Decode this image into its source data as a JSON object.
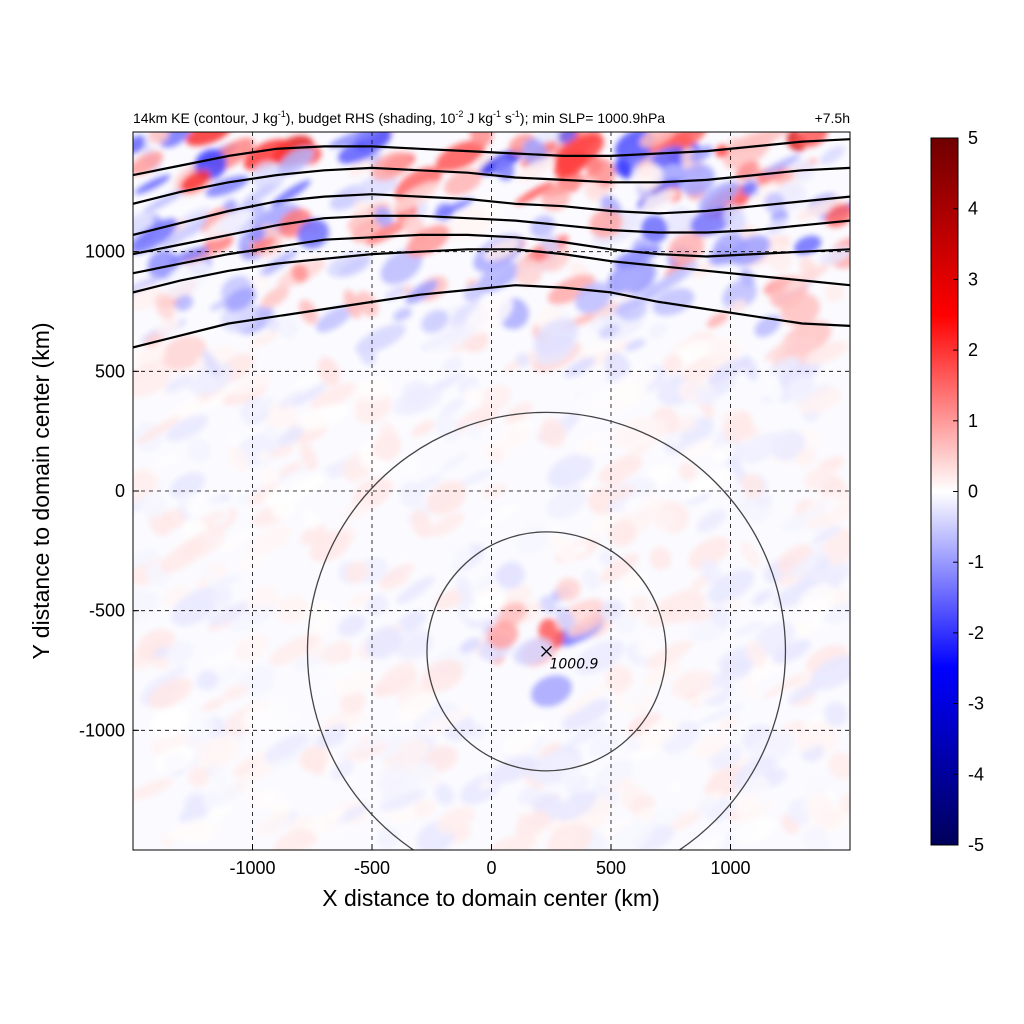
{
  "chart_data": {
    "type": "heatmap",
    "title_main": "14km KE (contour, J kg",
    "title_sup1": "-1",
    "title_mid": "), budget RHS (shading, 10",
    "title_sup2": "-2",
    "title_mid2": " J kg",
    "title_sup3": "-1",
    "title_mid3": " s",
    "title_sup4": "-1",
    "title_end": "); min SLP= 1000.9hPa",
    "time_label": "+7.5h",
    "xlabel": "X distance to domain center (km)",
    "ylabel": "Y distance to domain center (km)",
    "xlim": [
      -1500,
      1500
    ],
    "ylim": [
      -1500,
      1500
    ],
    "xticks": [
      -1000,
      -500,
      0,
      500,
      1000
    ],
    "yticks": [
      -1000,
      -500,
      0,
      500,
      1000
    ],
    "grid": "dashed",
    "colorbar": {
      "min": -5,
      "max": 5,
      "ticks": [
        5,
        4,
        3,
        2,
        1,
        0,
        -1,
        -2,
        -3,
        -4,
        -5
      ],
      "colors": [
        "#00005a",
        "#0000ff",
        "#ffffff",
        "#ff0000",
        "#6e0000"
      ]
    },
    "storm_center": {
      "x": 230,
      "y": -670,
      "label": "1000.9"
    },
    "range_rings_km": [
      500,
      1000
    ],
    "ke_contours": [
      {
        "x": [
          -1500,
          -1300,
          -1100,
          -900,
          -700,
          -500,
          -300,
          -100,
          100,
          300,
          500,
          700,
          900,
          1100,
          1300,
          1500
        ],
        "y": [
          600,
          650,
          700,
          730,
          760,
          790,
          820,
          840,
          860,
          850,
          830,
          790,
          760,
          730,
          700,
          690
        ]
      },
      {
        "x": [
          -1500,
          -1300,
          -1100,
          -900,
          -700,
          -500,
          -300,
          -100,
          100,
          300,
          500,
          700,
          900,
          1100,
          1300,
          1500
        ],
        "y": [
          830,
          880,
          920,
          950,
          970,
          990,
          1000,
          1010,
          1010,
          990,
          960,
          940,
          920,
          900,
          880,
          860
        ]
      },
      {
        "x": [
          -1500,
          -1300,
          -1100,
          -900,
          -700,
          -500,
          -300,
          -100,
          100,
          300,
          500,
          700,
          900,
          1100,
          1300,
          1500
        ],
        "y": [
          910,
          950,
          990,
          1020,
          1050,
          1060,
          1070,
          1070,
          1060,
          1040,
          1010,
          990,
          980,
          990,
          1000,
          1010
        ]
      },
      {
        "x": [
          -1500,
          -1300,
          -1100,
          -900,
          -700,
          -500,
          -300,
          -100,
          100,
          300,
          500,
          700,
          900,
          1100,
          1300,
          1500
        ],
        "y": [
          990,
          1030,
          1070,
          1110,
          1140,
          1150,
          1150,
          1140,
          1130,
          1110,
          1090,
          1080,
          1080,
          1090,
          1110,
          1130
        ]
      },
      {
        "x": [
          -1500,
          -1300,
          -1100,
          -900,
          -700,
          -500,
          -300,
          -100,
          100,
          300,
          500,
          700,
          900,
          1100,
          1300,
          1500
        ],
        "y": [
          1070,
          1120,
          1170,
          1210,
          1230,
          1240,
          1230,
          1220,
          1200,
          1190,
          1170,
          1160,
          1170,
          1190,
          1210,
          1230
        ]
      },
      {
        "x": [
          -1500,
          -1300,
          -1100,
          -900,
          -700,
          -500,
          -300,
          -100,
          100,
          300,
          500,
          700,
          900,
          1100,
          1300,
          1500
        ],
        "y": [
          1200,
          1250,
          1290,
          1320,
          1340,
          1350,
          1340,
          1330,
          1310,
          1300,
          1290,
          1290,
          1300,
          1320,
          1340,
          1350
        ]
      },
      {
        "x": [
          -1500,
          -1300,
          -1100,
          -900,
          -700,
          -500,
          -300,
          -100,
          100,
          300,
          500,
          700,
          900,
          1100,
          1300,
          1500
        ],
        "y": [
          1320,
          1360,
          1400,
          1430,
          1440,
          1440,
          1430,
          1420,
          1410,
          1400,
          1400,
          1410,
          1420,
          1440,
          1460,
          1470
        ]
      }
    ]
  }
}
